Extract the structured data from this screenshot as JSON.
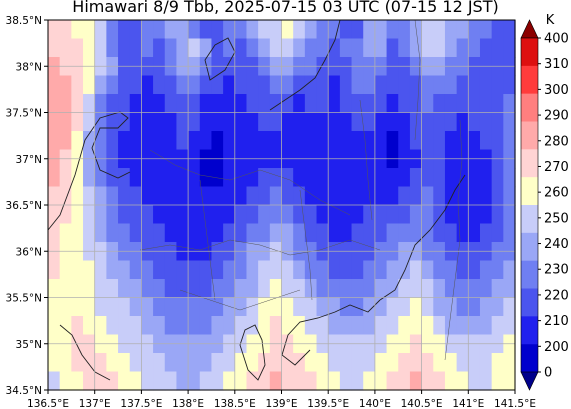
{
  "title": "Himawari 8/9 Tbb, 2025-07-15 03 UTC (07-15 12 JST)",
  "map": {
    "lon_range": [
      136.5,
      141.5
    ],
    "lat_range": [
      34.5,
      38.5
    ],
    "grid": true,
    "lon_ticks": [
      136.5,
      137,
      137.5,
      138,
      138.5,
      139,
      139.5,
      140,
      140.5,
      141,
      141.5
    ],
    "lon_tick_labels": [
      "136.5°E",
      "137°E",
      "137.5°E",
      "138°E",
      "138.5°E",
      "139°E",
      "139.5°E",
      "140°E",
      "140.5°E",
      "141°E",
      "141.5°E"
    ],
    "lat_ticks": [
      34.5,
      35,
      35.5,
      36,
      36.5,
      37,
      37.5,
      38,
      38.5
    ],
    "lat_tick_labels": [
      "34.5°N",
      "35°N",
      "35.5°N",
      "36°N",
      "36.5°N",
      "37°N",
      "37.5°N",
      "38°N",
      "38.5°N"
    ]
  },
  "colorbar": {
    "unit": "K",
    "labels": [
      "0",
      "200",
      "210",
      "220",
      "230",
      "240",
      "250",
      "260",
      "270",
      "280",
      "290",
      "300",
      "310",
      "400"
    ],
    "colors": [
      "#00008b",
      "#0000cd",
      "#2020ee",
      "#4b55ee",
      "#6f7ff2",
      "#9aa7f6",
      "#c8cdf9",
      "#ffffc8",
      "#ffd4d4",
      "#ffaaaa",
      "#ff7f7f",
      "#ff3c3c",
      "#dd1010",
      "#8b0000"
    ]
  },
  "field": {
    "description_levels": "brightness temperature in K, binned by colorbar",
    "rows": [
      "HHGGFDCCDDEEDCCDDEFFGFEDDCCEEDDEFFEEDDCC",
      "HHHGFDCCDCDEFECDCDEFFEDDCDDEECDEFFEDDCCC",
      "IHHGFECCCCDEEDCCCCDEEDDCCCDDDCCDEEDDCCCC",
      "IIHGEDCCBCCDDCCBCCCDDCCCBCDDCCCCDDDCCCCC",
      "IIHFDCCBBBCCCBBBBCCCCBCCBCCCCBCCDCCCCCCD",
      "IIHFDCCBBBBCCBBBBBCCBBBBBBCCBBBCCCCBCCCD",
      "IIGEDCBBBBBCBBABBBBBBBBBBBBBBABCCCBBBCCD",
      "IHGEDCBBBBBBBAABBBBBBBBBBBBBBABBCCBBBBCD",
      "IHGEDCCBBBBBBAABBBCCCBBBBBBBBBBCCCBBBBCD",
      "HHGFEDCCBBBBBBBBBCCDCCBBBBBBBBCCDCBBBBCD",
      "HHGFEDCCCBBBBBBBCCDDDCCBBBBCCCCDDCBBBBCD",
      "HGGFEDDCCCBBBBBCCDDEEDCCBBCCCDDDDCCBBCCD",
      "HGGFFEDDCCCBBBCCDEEFEDDCCCCCDDEEDDCCCCDD",
      "HGGGFEEDDCCCCCCDDEFFFEDDCCCDDEEFEDDCCDDE",
      "GGGGFFEEDDCCCCDDEEFGFFEDDDDDEEFFFEDDDDEE",
      "GGGGFFFEEDDDDDDEEFGGGFFEEDDEEFFGFEEDDEEF",
      "GGHGGFFFEEDDDDEEFFGHGGFFEEEEFFGGGFEEEEFF",
      "GGHHGGFFFEEEEEEFFGGHHGGFFFFFFGGHGGFFFFFG",
      "GGHHHGGFFFEEEEFFGGHHHHGGFFFFGGHHHGGFFFGG",
      "FGGHHHGGFFFEEFFGGHHIHHHGGFFGGHHIHHGGFFGG"
    ]
  }
}
